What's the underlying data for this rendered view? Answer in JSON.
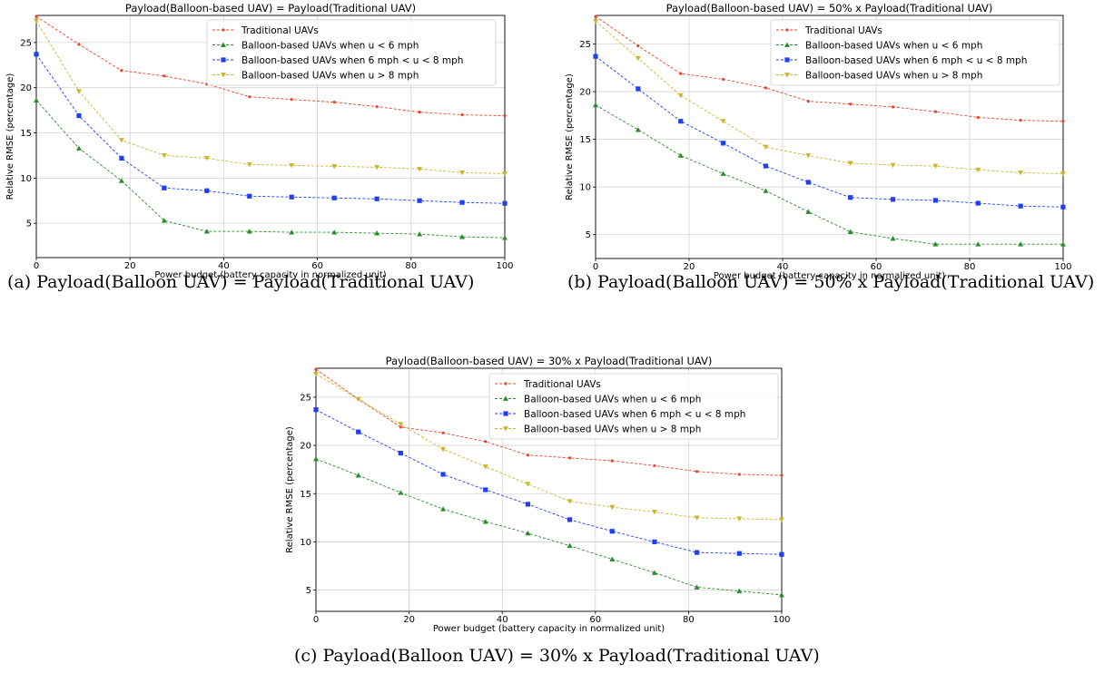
{
  "figure": {
    "captions": [
      "(a) Payload(Balloon UAV) = Payload(Traditional UAV)",
      "(b) Payload(Balloon UAV) = 50% x Payload(Traditional UAV)",
      "(c) Payload(Balloon UAV) = 30% x Payload(Traditional UAV)"
    ]
  },
  "colors": {
    "traditional": "#e8442e",
    "u_lt_6": "#2a8c2a",
    "u_6_8": "#1f3ff0",
    "u_gt_8": "#cbb62d",
    "grid": "#d3d3d3"
  },
  "chart_data": [
    {
      "type": "line",
      "title": "Payload(Balloon-based UAV) = Payload(Traditional UAV)",
      "xlabel": "Power budget (battery capacity in normalized unit)",
      "ylabel": "Relative RMSE (percentage)",
      "xlim": [
        0,
        100
      ],
      "ylim": [
        1.2,
        28
      ],
      "xticks": [
        0,
        20,
        40,
        60,
        80,
        100
      ],
      "yticks": [
        5,
        10,
        15,
        20,
        25
      ],
      "grid": true,
      "legend": "top-right",
      "x": [
        0,
        9.1,
        18.2,
        27.3,
        36.4,
        45.5,
        54.5,
        63.6,
        72.7,
        81.8,
        90.9,
        100
      ],
      "series": [
        {
          "name": "Traditional UAVs",
          "marker": "circle",
          "values": [
            27.9,
            24.8,
            21.9,
            21.3,
            20.4,
            19.0,
            18.7,
            18.4,
            17.9,
            17.3,
            17.0,
            16.9
          ]
        },
        {
          "name": "Balloon-based UAVs when u < 6 mph",
          "marker": "triangle-up",
          "values": [
            18.6,
            13.3,
            9.7,
            5.3,
            4.1,
            4.1,
            4.0,
            4.0,
            3.9,
            3.8,
            3.5,
            3.4
          ]
        },
        {
          "name": "Balloon-based UAVs when 6 mph < u < 8 mph",
          "marker": "square",
          "values": [
            23.7,
            16.9,
            12.2,
            8.9,
            8.6,
            8.0,
            7.9,
            7.8,
            7.7,
            7.5,
            7.3,
            7.2
          ]
        },
        {
          "name": "Balloon-based UAVs when u > 8 mph",
          "marker": "triangle-down",
          "values": [
            27.4,
            19.6,
            14.2,
            12.5,
            12.2,
            11.5,
            11.4,
            11.3,
            11.2,
            11.0,
            10.6,
            10.5
          ]
        }
      ]
    },
    {
      "type": "line",
      "title": "Payload(Balloon-based UAV) = 50% x Payload(Traditional UAV)",
      "xlabel": "Power budget (battery capacity in normalized unit)",
      "ylabel": "Relative RMSE (percentage)",
      "xlim": [
        0,
        100
      ],
      "ylim": [
        2.5,
        28
      ],
      "xticks": [
        0,
        20,
        40,
        60,
        80,
        100
      ],
      "yticks": [
        5,
        10,
        15,
        20,
        25
      ],
      "grid": true,
      "legend": "top-right",
      "x": [
        0,
        9.1,
        18.2,
        27.3,
        36.4,
        45.5,
        54.5,
        63.6,
        72.7,
        81.8,
        90.9,
        100
      ],
      "series": [
        {
          "name": "Traditional UAVs",
          "marker": "circle",
          "values": [
            27.9,
            24.8,
            21.9,
            21.3,
            20.4,
            19.0,
            18.7,
            18.4,
            17.9,
            17.3,
            17.0,
            16.9
          ]
        },
        {
          "name": "Balloon-based UAVs when u < 6 mph",
          "marker": "triangle-up",
          "values": [
            18.6,
            16.0,
            13.3,
            11.4,
            9.6,
            7.4,
            5.3,
            4.6,
            4.0,
            4.0,
            4.0,
            4.0
          ]
        },
        {
          "name": "Balloon-based UAVs when 6 mph < u < 8 mph",
          "marker": "square",
          "values": [
            23.7,
            20.3,
            16.9,
            14.6,
            12.2,
            10.5,
            8.9,
            8.7,
            8.6,
            8.3,
            8.0,
            7.9
          ]
        },
        {
          "name": "Balloon-based UAVs when u > 8 mph",
          "marker": "triangle-down",
          "values": [
            27.4,
            23.5,
            19.6,
            16.9,
            14.2,
            13.3,
            12.5,
            12.3,
            12.2,
            11.8,
            11.5,
            11.4
          ]
        }
      ]
    },
    {
      "type": "line",
      "title": "Payload(Balloon-based UAV) = 30% x Payload(Traditional UAV)",
      "xlabel": "Power budget (battery capacity in normalized unit)",
      "ylabel": "Relative RMSE (percentage)",
      "xlim": [
        0,
        100
      ],
      "ylim": [
        2.8,
        28
      ],
      "xticks": [
        0,
        20,
        40,
        60,
        80,
        100
      ],
      "yticks": [
        5,
        10,
        15,
        20,
        25
      ],
      "grid": true,
      "legend": "top-right",
      "x": [
        0,
        9.1,
        18.2,
        27.3,
        36.4,
        45.5,
        54.5,
        63.6,
        72.7,
        81.8,
        90.9,
        100
      ],
      "series": [
        {
          "name": "Traditional UAVs",
          "marker": "circle",
          "values": [
            27.9,
            24.8,
            21.9,
            21.3,
            20.4,
            19.0,
            18.7,
            18.4,
            17.9,
            17.3,
            17.0,
            16.9
          ]
        },
        {
          "name": "Balloon-based UAVs when u < 6 mph",
          "marker": "triangle-up",
          "values": [
            18.6,
            16.9,
            15.1,
            13.4,
            12.1,
            10.9,
            9.6,
            8.2,
            6.8,
            5.3,
            4.9,
            4.5
          ]
        },
        {
          "name": "Balloon-based UAVs when 6 mph < u < 8 mph",
          "marker": "square",
          "values": [
            23.7,
            21.4,
            19.2,
            17.0,
            15.4,
            13.9,
            12.3,
            11.1,
            10.0,
            8.9,
            8.8,
            8.7
          ]
        },
        {
          "name": "Balloon-based UAVs when u > 8 mph",
          "marker": "triangle-down",
          "values": [
            27.4,
            24.8,
            22.2,
            19.6,
            17.8,
            16.0,
            14.2,
            13.6,
            13.1,
            12.5,
            12.4,
            12.3
          ]
        }
      ]
    }
  ]
}
